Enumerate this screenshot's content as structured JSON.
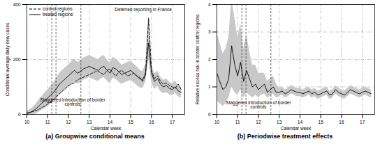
{
  "chart_data": [
    {
      "type": "line",
      "title": "(a) Groupwise conditional means",
      "x_label": "Calendar week",
      "y_label": "Conditional average daily new cases",
      "x": [
        10,
        10.14,
        10.29,
        10.43,
        10.57,
        10.71,
        10.86,
        11,
        11.14,
        11.29,
        11.43,
        11.57,
        11.71,
        11.86,
        12,
        12.14,
        12.29,
        12.43,
        12.57,
        12.71,
        12.86,
        13,
        13.14,
        13.29,
        13.43,
        13.57,
        13.71,
        13.86,
        14,
        14.14,
        14.29,
        14.43,
        14.57,
        14.71,
        14.86,
        15,
        15.14,
        15.29,
        15.43,
        15.57,
        15.71,
        15.86,
        16,
        16.14,
        16.29,
        16.43,
        16.57,
        16.71,
        16.86,
        17,
        17.14,
        17.29,
        17.43
      ],
      "xlim": [
        10,
        17.6
      ],
      "xticks": [
        10,
        11,
        12,
        13,
        14,
        15,
        16,
        17
      ],
      "ylim": [
        0,
        400
      ],
      "yticks": [
        0,
        200,
        400
      ],
      "grid": true,
      "legend": "top-left",
      "series": [
        {
          "name": "control regions",
          "color": "#000000",
          "line_style": "dashed",
          "values": [
            5,
            8,
            10,
            14,
            18,
            25,
            30,
            38,
            45,
            55,
            65,
            75,
            85,
            95,
            105,
            110,
            115,
            125,
            130,
            135,
            140,
            145,
            150,
            155,
            158,
            150,
            145,
            160,
            165,
            150,
            140,
            155,
            160,
            150,
            140,
            145,
            150,
            140,
            135,
            120,
            140,
            350,
            160,
            130,
            140,
            120,
            110,
            115,
            105,
            100,
            95,
            110,
            90
          ]
        },
        {
          "name": "treated regions",
          "color": "#000000",
          "line_style": "solid",
          "values": [
            3,
            6,
            12,
            20,
            30,
            40,
            50,
            60,
            70,
            80,
            95,
            110,
            120,
            130,
            140,
            150,
            160,
            150,
            155,
            165,
            170,
            175,
            170,
            165,
            160,
            170,
            175,
            160,
            150,
            170,
            165,
            155,
            145,
            150,
            155,
            160,
            150,
            140,
            130,
            125,
            150,
            260,
            150,
            120,
            130,
            110,
            100,
            105,
            95,
            90,
            100,
            85,
            80
          ]
        }
      ],
      "band": {
        "color": "#c8c8c8",
        "lower": [
          0,
          0,
          0,
          2,
          8,
          15,
          22,
          30,
          38,
          45,
          58,
          70,
          80,
          90,
          100,
          108,
          118,
          110,
          115,
          125,
          130,
          135,
          130,
          125,
          120,
          130,
          135,
          122,
          112,
          132,
          128,
          118,
          110,
          115,
          120,
          125,
          116,
          106,
          98,
          94,
          118,
          200,
          118,
          92,
          102,
          84,
          76,
          80,
          72,
          68,
          78,
          64,
          60
        ],
        "upper": [
          12,
          18,
          26,
          38,
          52,
          65,
          78,
          90,
          102,
          115,
          132,
          150,
          160,
          170,
          180,
          192,
          202,
          190,
          195,
          205,
          210,
          215,
          210,
          205,
          200,
          210,
          215,
          198,
          188,
          208,
          202,
          192,
          180,
          185,
          190,
          195,
          184,
          174,
          162,
          156,
          182,
          360,
          182,
          148,
          158,
          136,
          124,
          130,
          118,
          112,
          122,
          106,
          100
        ]
      },
      "event_lines": [
        11.2,
        11.4,
        12.6
      ],
      "annotations": [
        {
          "text": "Staggered introduction of border controls",
          "x": 12.2,
          "y": 45
        },
        {
          "text": "Deferred reporting in France",
          "x": 15.6,
          "y": 380
        }
      ]
    },
    {
      "type": "line",
      "title": "(b) Periodwise treatment effects",
      "x_label": "Calendar week",
      "y_label": "Relative excess risk in border control regions",
      "x": [
        10,
        10.14,
        10.29,
        10.43,
        10.57,
        10.71,
        10.86,
        11,
        11.14,
        11.29,
        11.43,
        11.57,
        11.71,
        11.86,
        12,
        12.14,
        12.29,
        12.43,
        12.57,
        12.71,
        12.86,
        13,
        13.14,
        13.29,
        13.43,
        13.57,
        13.71,
        13.86,
        14,
        14.14,
        14.29,
        14.43,
        14.57,
        14.71,
        14.86,
        15,
        15.14,
        15.29,
        15.43,
        15.57,
        15.71,
        15.86,
        16,
        16.14,
        16.29,
        16.43,
        16.57,
        16.71,
        16.86,
        17,
        17.14,
        17.29,
        17.43
      ],
      "xlim": [
        10,
        17.6
      ],
      "xticks": [
        10,
        11,
        12,
        13,
        14,
        15,
        16,
        17
      ],
      "ylim": [
        0,
        4
      ],
      "yticks": [
        0,
        1,
        2,
        3,
        4
      ],
      "grid": true,
      "series": [
        {
          "color": "#000000",
          "line_style": "solid",
          "values": [
            1.5,
            1.2,
            0.9,
            1.0,
            1.3,
            2.5,
            1.8,
            1.4,
            1.9,
            1.2,
            1.6,
            1.3,
            1.0,
            1.1,
            0.9,
            1.0,
            1.1,
            0.8,
            0.9,
            1.0,
            0.8,
            0.8,
            0.85,
            0.75,
            0.8,
            0.9,
            0.85,
            0.8,
            0.8,
            0.75,
            0.8,
            0.85,
            0.75,
            0.8,
            0.7,
            0.75,
            0.8,
            0.85,
            0.7,
            0.75,
            0.9,
            0.8,
            0.75,
            0.7,
            0.8,
            0.9,
            0.85,
            0.8,
            0.75,
            0.8,
            0.85,
            0.8,
            0.75
          ]
        }
      ],
      "band": {
        "color": "#c8c8c8",
        "lower": [
          0.5,
          0.4,
          0.3,
          0.4,
          0.6,
          1.0,
          0.8,
          0.7,
          0.9,
          0.6,
          0.8,
          0.7,
          0.6,
          0.7,
          0.6,
          0.7,
          0.75,
          0.6,
          0.65,
          0.75,
          0.6,
          0.65,
          0.7,
          0.6,
          0.65,
          0.75,
          0.7,
          0.65,
          0.65,
          0.6,
          0.65,
          0.7,
          0.6,
          0.65,
          0.55,
          0.6,
          0.65,
          0.7,
          0.55,
          0.6,
          0.75,
          0.65,
          0.6,
          0.55,
          0.65,
          0.75,
          0.7,
          0.65,
          0.6,
          0.65,
          0.7,
          0.65,
          0.6
        ],
        "upper": [
          3.0,
          2.6,
          2.2,
          2.4,
          2.8,
          4.2,
          3.5,
          2.8,
          3.3,
          2.4,
          2.9,
          2.3,
          1.8,
          1.8,
          1.5,
          1.5,
          1.5,
          1.2,
          1.3,
          1.4,
          1.1,
          0.95,
          1.0,
          0.9,
          0.95,
          1.05,
          1.0,
          0.95,
          0.95,
          0.9,
          0.95,
          1.0,
          0.9,
          0.95,
          0.85,
          0.9,
          0.95,
          1.0,
          0.85,
          0.9,
          1.05,
          0.95,
          0.9,
          0.85,
          0.95,
          1.05,
          1.0,
          0.95,
          0.9,
          0.95,
          1.0,
          0.95,
          0.9
        ]
      },
      "event_lines": [
        11.2,
        11.4,
        12.6
      ],
      "annotations": [
        {
          "text": "Staggered introduction of border controls",
          "x": 12.0,
          "y": 0.35
        }
      ]
    }
  ]
}
